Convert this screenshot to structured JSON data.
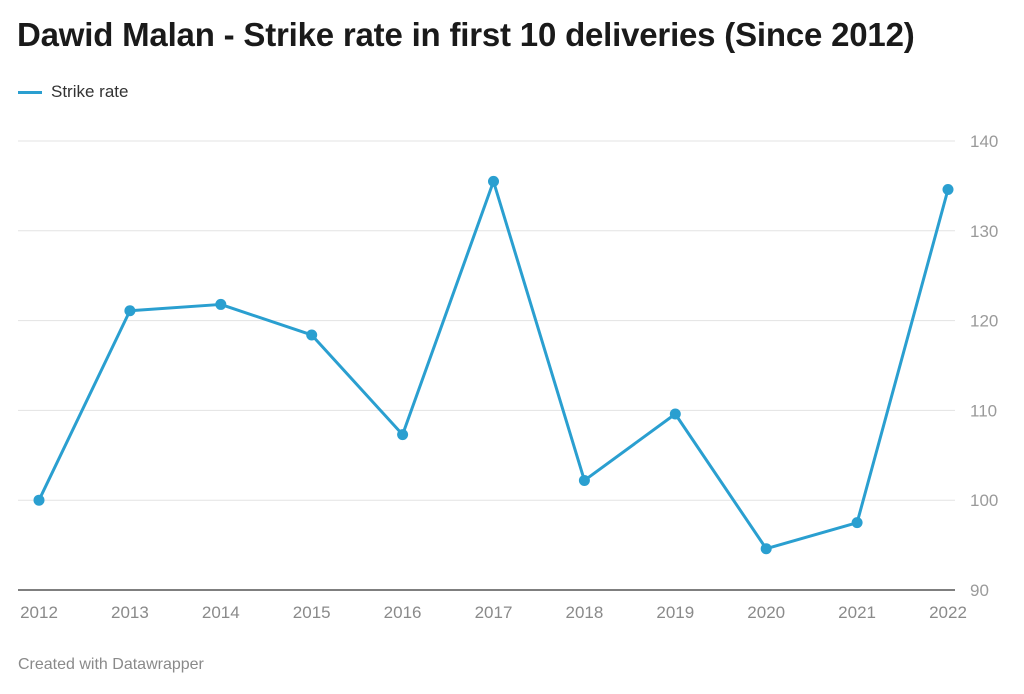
{
  "colors": {
    "series": "#2a9fd0",
    "grid": "#e3e3e3",
    "axis": "#333333"
  },
  "chart_data": {
    "type": "line",
    "title": "Dawid Malan - Strike rate in first 10 deliveries (Since 2012)",
    "xlabel": "",
    "ylabel": "",
    "legend_position": "top-left",
    "grid": true,
    "ylim": [
      90,
      140
    ],
    "yticks": [
      90,
      100,
      110,
      120,
      130,
      140
    ],
    "categories": [
      "2012",
      "2013",
      "2014",
      "2015",
      "2016",
      "2017",
      "2018",
      "2019",
      "2020",
      "2021",
      "2022"
    ],
    "series": [
      {
        "name": "Strike rate",
        "values": [
          100.0,
          121.1,
          121.8,
          118.4,
          107.3,
          135.5,
          102.2,
          109.6,
          94.6,
          97.5,
          134.6
        ]
      }
    ]
  },
  "footer": "Created with Datawrapper"
}
